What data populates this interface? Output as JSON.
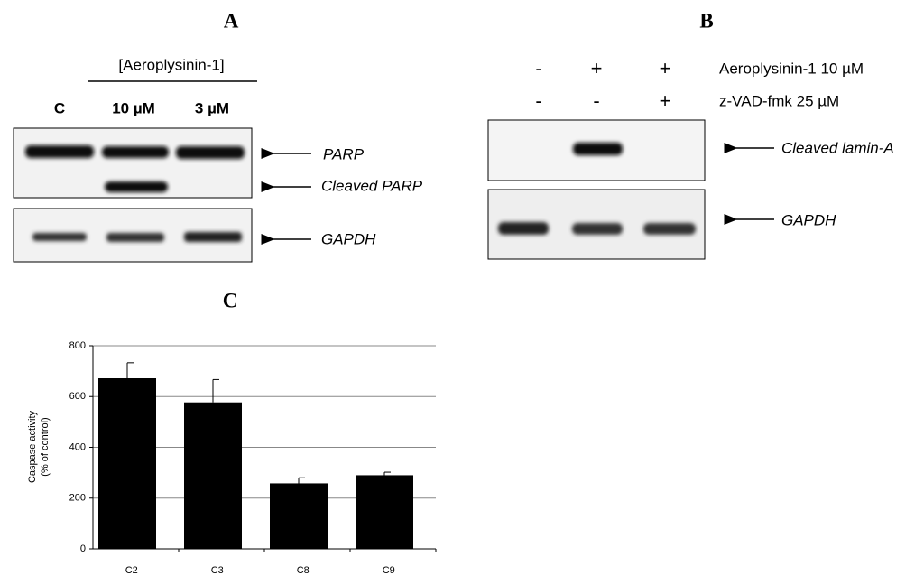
{
  "panel_a": {
    "label": "A",
    "treatment_header": "[Aeroplysinin-1]",
    "lanes": [
      "C",
      "10 µM",
      "3 µM"
    ],
    "bands": [
      "PARP",
      "Cleaved PARP",
      "GAPDH"
    ]
  },
  "panel_b": {
    "label": "B",
    "rows": [
      {
        "signs": [
          "-",
          "+",
          "+"
        ],
        "label": "Aeroplysinin-1 10 µM"
      },
      {
        "signs": [
          "-",
          "-",
          "+"
        ],
        "label": "z-VAD-fmk 25 µM"
      }
    ],
    "bands": [
      "Cleaved lamin-A",
      "GAPDH"
    ]
  },
  "chart_data": {
    "type": "bar",
    "title": "C",
    "ylabel": [
      "Caspase activity",
      "(% of control)"
    ],
    "categories": [
      "C2",
      "C3",
      "C8",
      "C9"
    ],
    "values": [
      672,
      577,
      258,
      290
    ],
    "errors": [
      61,
      90,
      22,
      12
    ],
    "color": "#000000",
    "ylim": [
      0,
      800
    ],
    "yticks": [
      0,
      200,
      400,
      600,
      800
    ],
    "grid": true
  }
}
